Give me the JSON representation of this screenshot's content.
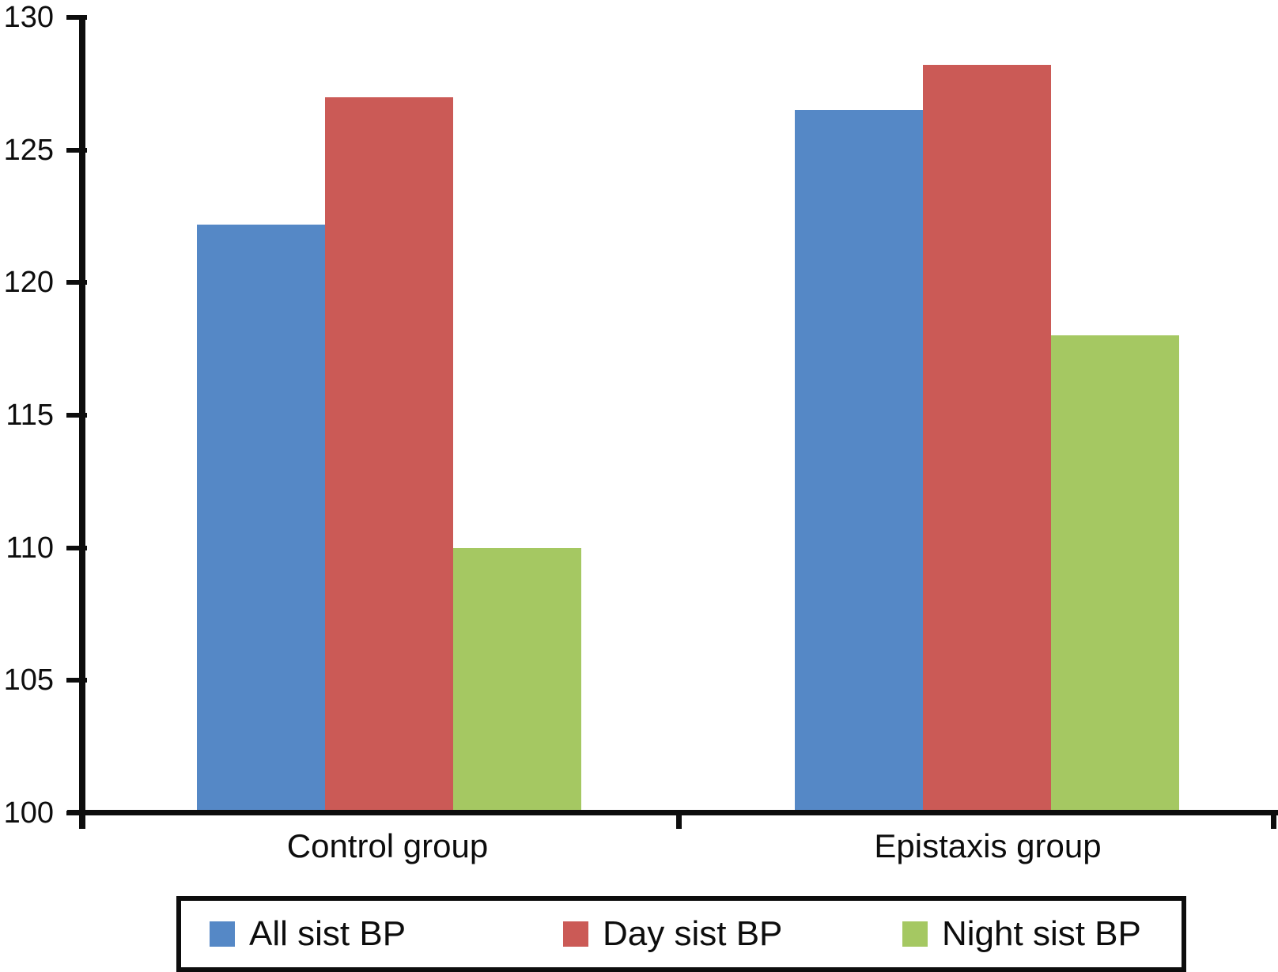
{
  "chart_data": {
    "type": "bar",
    "title": "",
    "xlabel": "",
    "ylabel": "",
    "categories": [
      "Control group",
      "Epistaxis group"
    ],
    "series": [
      {
        "name": "All sist BP",
        "color": "#5588C6",
        "values": [
          122.2,
          126.5
        ]
      },
      {
        "name": "Day sist BP",
        "color": "#CB5A56",
        "values": [
          127.0,
          128.2
        ]
      },
      {
        "name": "Night sist BP",
        "color": "#A5C862",
        "values": [
          110.0,
          118.0
        ]
      }
    ],
    "ylim": [
      100,
      130
    ],
    "yticks": [
      100,
      105,
      110,
      115,
      120,
      125,
      130
    ],
    "grid": false,
    "legend_position": "bottom",
    "axis_color": "#0d0d0d",
    "background_color": "#ffffff"
  }
}
